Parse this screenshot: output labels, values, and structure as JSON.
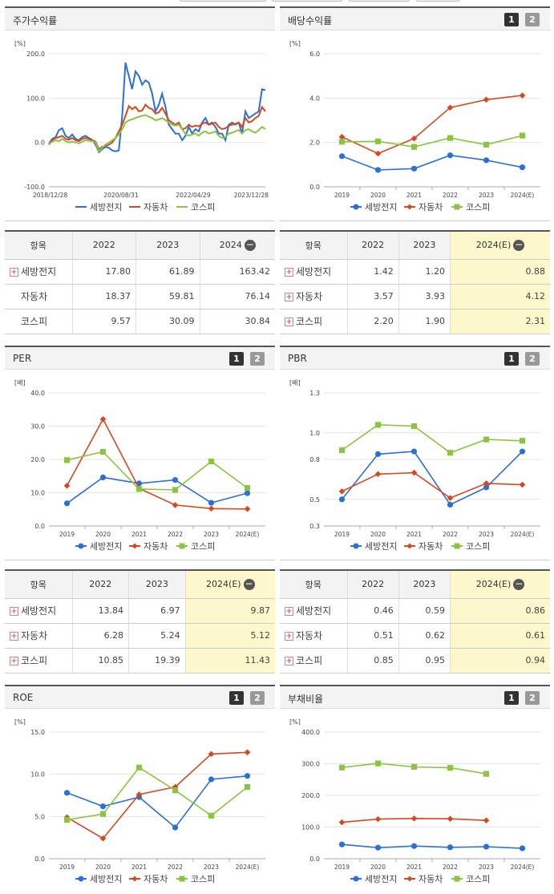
{
  "colors": {
    "series1": "#2a6fdb",
    "series2": "#d9471c",
    "series3": "#8bc53f"
  },
  "legend": [
    "세방전지",
    "자동차",
    "코스피"
  ],
  "buttons": {
    "b1": "1",
    "b2": "2"
  },
  "tables": [
    {
      "header": [
        "항목",
        "2022",
        "2023",
        "2024"
      ],
      "rows": [
        {
          "name": "세방전지",
          "plus": true,
          "v": [
            "17.80",
            "61.89",
            "163.42"
          ]
        },
        {
          "name": "자동차",
          "plus": false,
          "v": [
            "18.37",
            "59.81",
            "76.14"
          ]
        },
        {
          "name": "코스피",
          "plus": false,
          "v": [
            "9.57",
            "30.09",
            "30.84"
          ]
        }
      ],
      "hl": false
    },
    {
      "header": [
        "항목",
        "2022",
        "2023",
        "2024(E)"
      ],
      "rows": [
        {
          "name": "세방전지",
          "plus": true,
          "v": [
            "1.42",
            "1.20",
            "0.88"
          ]
        },
        {
          "name": "자동차",
          "plus": true,
          "v": [
            "3.57",
            "3.93",
            "4.12"
          ]
        },
        {
          "name": "코스피",
          "plus": true,
          "v": [
            "2.20",
            "1.90",
            "2.31"
          ]
        }
      ],
      "hl": true
    },
    {
      "header": [
        "항목",
        "2022",
        "2023",
        "2024(E)"
      ],
      "rows": [
        {
          "name": "세방전지",
          "plus": true,
          "v": [
            "13.84",
            "6.97",
            "9.87"
          ]
        },
        {
          "name": "자동차",
          "plus": true,
          "v": [
            "6.28",
            "5.24",
            "5.12"
          ]
        },
        {
          "name": "코스피",
          "plus": true,
          "v": [
            "10.85",
            "19.39",
            "11.43"
          ]
        }
      ],
      "hl": true
    },
    {
      "header": [
        "항목",
        "2022",
        "2023",
        "2024(E)"
      ],
      "rows": [
        {
          "name": "세방전지",
          "plus": true,
          "v": [
            "0.46",
            "0.59",
            "0.86"
          ]
        },
        {
          "name": "자동차",
          "plus": true,
          "v": [
            "0.51",
            "0.62",
            "0.61"
          ]
        },
        {
          "name": "코스피",
          "plus": true,
          "v": [
            "0.85",
            "0.95",
            "0.94"
          ]
        }
      ],
      "hl": true
    }
  ],
  "chart_data": [
    {
      "title": "주가수익률",
      "type": "line",
      "unit": "[%]",
      "x_ticks": [
        "2018/12/28",
        "2020/08/31",
        "2022/04/29",
        "2023/12/28"
      ],
      "yticks": [
        "-100.0",
        "0.0",
        "100.0",
        "200.0"
      ],
      "ylim": [
        -100,
        200
      ],
      "markers": false,
      "series": [
        {
          "name": "세방전지",
          "values": [
            -2,
            8,
            12,
            28,
            32,
            15,
            10,
            18,
            8,
            5,
            12,
            15,
            10,
            6,
            -5,
            -22,
            -15,
            -10,
            -12,
            -18,
            -20,
            -18,
            60,
            180,
            150,
            120,
            160,
            150,
            130,
            140,
            135,
            110,
            70,
            85,
            110,
            80,
            40,
            30,
            20,
            20,
            5,
            15,
            35,
            20,
            30,
            25,
            45,
            55,
            40,
            45,
            35,
            20,
            20,
            5,
            40,
            45,
            40,
            45,
            20,
            70,
            55,
            60,
            65,
            70,
            120,
            118
          ]
        },
        {
          "name": "자동차",
          "values": [
            -5,
            5,
            10,
            12,
            15,
            8,
            6,
            10,
            5,
            3,
            8,
            10,
            8,
            5,
            2,
            -15,
            -10,
            -8,
            -5,
            0,
            10,
            25,
            40,
            60,
            82,
            75,
            80,
            70,
            72,
            85,
            78,
            75,
            65,
            68,
            78,
            65,
            50,
            45,
            40,
            45,
            30,
            32,
            40,
            35,
            38,
            36,
            42,
            45,
            40,
            42,
            45,
            35,
            30,
            32,
            38,
            40,
            42,
            45,
            35,
            55,
            45,
            48,
            55,
            60,
            80,
            70
          ]
        },
        {
          "name": "코스피",
          "values": [
            -3,
            2,
            5,
            3,
            8,
            3,
            0,
            2,
            0,
            -2,
            2,
            5,
            4,
            3,
            0,
            -20,
            -12,
            -5,
            0,
            5,
            10,
            18,
            30,
            45,
            50,
            52,
            55,
            58,
            60,
            62,
            58,
            55,
            50,
            52,
            55,
            50,
            45,
            40,
            38,
            40,
            30,
            20,
            15,
            18,
            20,
            15,
            22,
            25,
            20,
            22,
            25,
            15,
            10,
            12,
            20,
            22,
            25,
            28,
            20,
            28,
            30,
            25,
            22,
            28,
            35,
            30
          ]
        }
      ]
    },
    {
      "title": "배당수익률",
      "type": "line",
      "unit": "[%]",
      "categories": [
        "2019",
        "2020",
        "2021",
        "2022",
        "2023",
        "2024(E)"
      ],
      "yticks": [
        "0.0",
        "2.0",
        "4.0",
        "6.0"
      ],
      "ylim": [
        0,
        6
      ],
      "markers": true,
      "series": [
        {
          "name": "세방전지",
          "values": [
            1.38,
            0.76,
            0.82,
            1.42,
            1.2,
            0.88
          ]
        },
        {
          "name": "자동차",
          "values": [
            2.25,
            1.5,
            2.18,
            3.57,
            3.93,
            4.12
          ]
        },
        {
          "name": "코스피",
          "values": [
            2.03,
            2.05,
            1.8,
            2.2,
            1.9,
            2.31
          ]
        }
      ]
    },
    {
      "title": "PER",
      "type": "line",
      "unit": "[배]",
      "categories": [
        "2019",
        "2020",
        "2021",
        "2022",
        "2023",
        "2024(E)"
      ],
      "yticks": [
        "0.0",
        "10.0",
        "20.0",
        "30.0",
        "40.0"
      ],
      "ylim": [
        0,
        40
      ],
      "markers": true,
      "series": [
        {
          "name": "세방전지",
          "values": [
            6.8,
            14.6,
            12.8,
            13.84,
            6.97,
            9.87
          ]
        },
        {
          "name": "자동차",
          "values": [
            12.1,
            32.1,
            11.3,
            6.28,
            5.24,
            5.12
          ]
        },
        {
          "name": "코스피",
          "values": [
            19.8,
            22.3,
            11.1,
            10.85,
            19.39,
            11.43
          ]
        }
      ]
    },
    {
      "title": "PBR",
      "type": "line",
      "unit": "[배]",
      "categories": [
        "2019",
        "2020",
        "2021",
        "2022",
        "2023",
        "2024(E)"
      ],
      "yticks": [
        "0.3",
        "0.5",
        "0.8",
        "1.0",
        "1.3"
      ],
      "ylim": [
        0.3,
        1.3
      ],
      "markers": true,
      "series": [
        {
          "name": "세방전지",
          "values": [
            0.5,
            0.84,
            0.86,
            0.46,
            0.59,
            0.86
          ]
        },
        {
          "name": "자동차",
          "values": [
            0.56,
            0.69,
            0.7,
            0.51,
            0.62,
            0.61
          ]
        },
        {
          "name": "코스피",
          "values": [
            0.87,
            1.06,
            1.05,
            0.85,
            0.95,
            0.94
          ]
        }
      ]
    },
    {
      "title": "ROE",
      "type": "line",
      "unit": "[%]",
      "categories": [
        "2019",
        "2020",
        "2021",
        "2022",
        "2023",
        "2024(E)"
      ],
      "yticks": [
        "0.0",
        "5.0",
        "10.0",
        "15.0"
      ],
      "ylim": [
        0,
        15
      ],
      "markers": true,
      "series": [
        {
          "name": "세방전지",
          "values": [
            7.8,
            6.2,
            7.3,
            3.7,
            9.4,
            9.8
          ]
        },
        {
          "name": "자동차",
          "values": [
            4.9,
            2.4,
            7.6,
            8.5,
            12.4,
            12.6
          ]
        },
        {
          "name": "코스피",
          "values": [
            4.6,
            5.3,
            10.8,
            8.1,
            5.1,
            8.5
          ]
        }
      ]
    },
    {
      "title": "부채비율",
      "type": "line",
      "unit": "[%]",
      "categories": [
        "2019",
        "2020",
        "2021",
        "2022",
        "2023",
        "2024(E)"
      ],
      "yticks": [
        "0.0",
        "100.0",
        "200.0",
        "300.0",
        "400.0"
      ],
      "ylim": [
        0,
        400
      ],
      "markers": true,
      "series": [
        {
          "name": "세방전지",
          "values": [
            45,
            35,
            40,
            36,
            38,
            33
          ]
        },
        {
          "name": "자동차",
          "values": [
            115,
            125,
            127,
            126,
            121,
            null
          ]
        },
        {
          "name": "코스피",
          "values": [
            288,
            301,
            290,
            287,
            268,
            null
          ]
        }
      ]
    }
  ]
}
